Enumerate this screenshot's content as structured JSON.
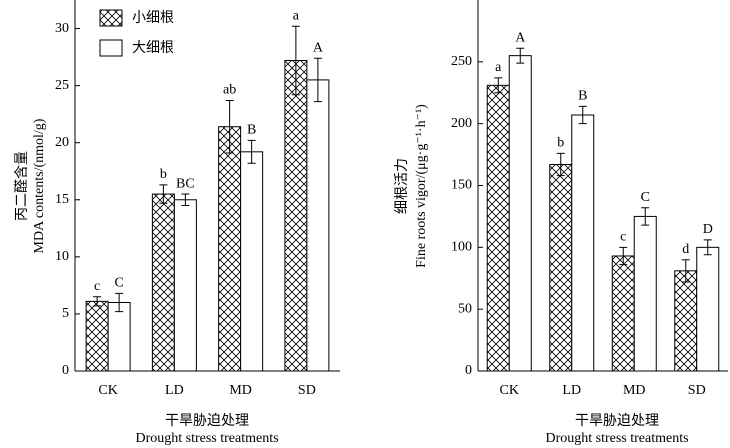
{
  "chart_data": [
    {
      "type": "bar",
      "y_label_cn": "丙二醛含量",
      "y_label": "MDA contents/(nmol/g)",
      "x_label_cn": "干旱胁迫处理",
      "x_label": "Drought stress treatments",
      "categories": [
        "CK",
        "LD",
        "MD",
        "SD"
      ],
      "ylim": [
        0,
        32.5
      ],
      "yticks": [
        0,
        5,
        10,
        15,
        20,
        25,
        30
      ],
      "legend": "upper left",
      "series": [
        {
          "name": "小细根",
          "color": "#ffffff",
          "pattern": "crosshatch",
          "values": [
            6.1,
            15.5,
            21.4,
            27.2
          ],
          "errors": [
            0.4,
            0.8,
            2.3,
            3.0
          ],
          "letters": [
            "c",
            "b",
            "ab",
            "a"
          ]
        },
        {
          "name": "大细根",
          "color": "#ffffff",
          "pattern": "none",
          "values": [
            6.0,
            15.0,
            19.2,
            25.5
          ],
          "errors": [
            0.8,
            0.5,
            1.0,
            1.9
          ],
          "letters": [
            "C",
            "BC",
            "B",
            "A"
          ]
        }
      ]
    },
    {
      "type": "bar",
      "y_label_cn": "细根活力",
      "y_label": "Fine roots vigor/(μg·g⁻¹·h⁻¹)",
      "x_label_cn": "干旱胁迫处理",
      "x_label": "Drought stress treatments",
      "categories": [
        "CK",
        "LD",
        "MD",
        "SD"
      ],
      "ylim": [
        0,
        300
      ],
      "yticks": [
        0,
        50,
        100,
        150,
        200,
        250
      ],
      "series": [
        {
          "color": "#ffffff",
          "pattern": "crosshatch",
          "values": [
            231,
            167,
            93,
            81
          ],
          "errors": [
            6,
            9,
            7,
            9
          ],
          "letters": [
            "a",
            "b",
            "c",
            "d"
          ]
        },
        {
          "color": "#ffffff",
          "pattern": "none",
          "values": [
            255,
            207,
            125,
            100
          ],
          "errors": [
            6,
            7,
            7,
            6
          ],
          "letters": [
            "A",
            "B",
            "C",
            "D"
          ]
        }
      ]
    }
  ]
}
